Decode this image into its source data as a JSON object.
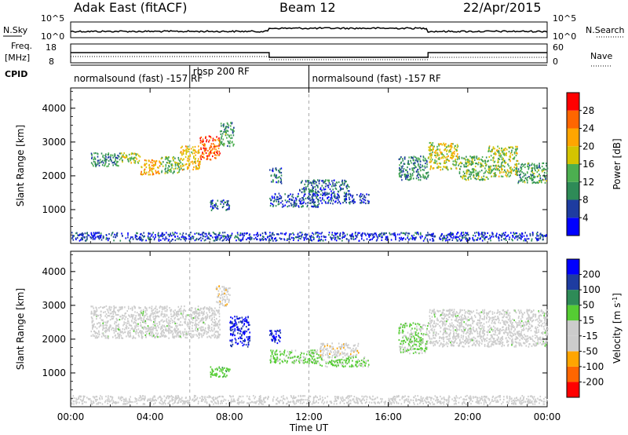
{
  "header": {
    "station": "Adak East (fitACF)",
    "beam": "Beam 12",
    "date": "22/Apr/2015"
  },
  "top_panels": {
    "nsky_label": "N.Sky",
    "nsearch_label": "N.Search",
    "nsky_ticks": [
      "10^5",
      "10^0"
    ],
    "nsearch_ticks": [
      "10^5",
      "10^0"
    ],
    "freq_label": "Freq.",
    "freq_unit": "[MHz]",
    "freq_ticks": [
      "18",
      "8"
    ],
    "nave_label": "Nave",
    "nave_ticks": [
      "60",
      "0"
    ],
    "cpid_label": "CPID",
    "cpid_segments": [
      {
        "label": "normalsound (fast) -157 RF",
        "start": 0,
        "end": 6
      },
      {
        "label": "rbsp 200 RF",
        "start": 6,
        "end": 12
      },
      {
        "label": "normalsound (fast) -157 RF",
        "start": 12,
        "end": 24
      }
    ]
  },
  "colors": {
    "power": [
      "#0000ff",
      "#1e3ca0",
      "#2e8b57",
      "#4caf50",
      "#d4c400",
      "#ffa500",
      "#ff6600",
      "#ff0000"
    ],
    "velocity": [
      "#ff0000",
      "#ff6600",
      "#ffa500",
      "#cccccc",
      "#cccccc",
      "#55cc33",
      "#2e8b57",
      "#1e3ca0",
      "#0000ff"
    ]
  },
  "chart_data": [
    {
      "type": "heatmap",
      "ylabel": "Slant Range [km]",
      "xlim": [
        0,
        24
      ],
      "ylim": [
        0,
        4600
      ],
      "yticks": [
        "1000",
        "2000",
        "3000",
        "4000"
      ],
      "xticks": [
        "00:00",
        "04:00",
        "08:00",
        "12:00",
        "16:00",
        "20:00",
        "00:00"
      ],
      "colorbar": {
        "label": "Power [dB]",
        "ticks": [
          "4",
          "8",
          "12",
          "16",
          "20",
          "24",
          "28"
        ],
        "range": [
          0,
          32
        ]
      },
      "patches": [
        {
          "t0": 1.0,
          "t1": 2.5,
          "r0": 2300,
          "r1": 2700,
          "v": 10
        },
        {
          "t0": 2.5,
          "t1": 3.5,
          "r0": 2400,
          "r1": 2700,
          "v": 16
        },
        {
          "t0": 3.5,
          "t1": 4.5,
          "r0": 2050,
          "r1": 2500,
          "v": 22
        },
        {
          "t0": 4.5,
          "t1": 5.5,
          "r0": 2100,
          "r1": 2600,
          "v": 14
        },
        {
          "t0": 5.5,
          "t1": 6.5,
          "r0": 2200,
          "r1": 2900,
          "v": 20
        },
        {
          "t0": 6.5,
          "t1": 7.5,
          "r0": 2500,
          "r1": 3200,
          "v": 26
        },
        {
          "t0": 7.5,
          "t1": 8.2,
          "r0": 2900,
          "r1": 3600,
          "v": 12
        },
        {
          "t0": 7.0,
          "t1": 8.0,
          "r0": 1000,
          "r1": 1300,
          "v": 6
        },
        {
          "t0": 10.0,
          "t1": 10.6,
          "r0": 1800,
          "r1": 2250,
          "v": 8
        },
        {
          "t0": 10.0,
          "t1": 12.5,
          "r0": 1100,
          "r1": 1500,
          "v": 6
        },
        {
          "t0": 11.5,
          "t1": 14.0,
          "r0": 1500,
          "r1": 1900,
          "v": 8
        },
        {
          "t0": 12.5,
          "t1": 15.0,
          "r0": 1200,
          "r1": 1500,
          "v": 5
        },
        {
          "t0": 16.5,
          "t1": 18.0,
          "r0": 1900,
          "r1": 2600,
          "v": 10
        },
        {
          "t0": 18.0,
          "t1": 19.5,
          "r0": 2200,
          "r1": 3000,
          "v": 18
        },
        {
          "t0": 19.5,
          "t1": 21.0,
          "r0": 1900,
          "r1": 2600,
          "v": 14
        },
        {
          "t0": 21.0,
          "t1": 22.5,
          "r0": 2000,
          "r1": 2900,
          "v": 16
        },
        {
          "t0": 22.5,
          "t1": 24.0,
          "r0": 1800,
          "r1": 2400,
          "v": 12
        },
        {
          "t0": 0.0,
          "t1": 24.0,
          "r0": 100,
          "r1": 350,
          "v": 5
        }
      ]
    },
    {
      "type": "heatmap",
      "ylabel": "Slant Range [km]",
      "xlabel": "Time UT",
      "xlim": [
        0,
        24
      ],
      "ylim": [
        0,
        4600
      ],
      "yticks": [
        "1000",
        "2000",
        "3000",
        "4000"
      ],
      "xticks": [
        "00:00",
        "04:00",
        "08:00",
        "12:00",
        "16:00",
        "20:00",
        "00:00"
      ],
      "colorbar": {
        "label": "Velocity [m s",
        "label_sup": "-1",
        "label_end": "]",
        "ticks": [
          "200",
          "100",
          "50",
          "15",
          "-15",
          "-50",
          "-100",
          "-200"
        ],
        "range": [
          -250,
          250
        ]
      },
      "patches": [
        {
          "t0": 1.0,
          "t1": 7.5,
          "r0": 2050,
          "r1": 3000,
          "v": 0
        },
        {
          "t0": 7.3,
          "t1": 8.0,
          "r0": 3000,
          "r1": 3600,
          "v": -60
        },
        {
          "t0": 8.0,
          "t1": 9.0,
          "r0": 1800,
          "r1": 2700,
          "v": 200
        },
        {
          "t0": 7.0,
          "t1": 8.0,
          "r0": 900,
          "r1": 1200,
          "v": 60
        },
        {
          "t0": 10.0,
          "t1": 10.6,
          "r0": 1900,
          "r1": 2300,
          "v": 200
        },
        {
          "t0": 10.0,
          "t1": 12.5,
          "r0": 1300,
          "r1": 1700,
          "v": 40
        },
        {
          "t0": 12.5,
          "t1": 14.5,
          "r0": 1500,
          "r1": 1900,
          "v": -60
        },
        {
          "t0": 12.5,
          "t1": 15.0,
          "r0": 1200,
          "r1": 1500,
          "v": 40
        },
        {
          "t0": 16.5,
          "t1": 18.0,
          "r0": 1600,
          "r1": 2500,
          "v": 30
        },
        {
          "t0": 18.0,
          "t1": 24.0,
          "r0": 1800,
          "r1": 2900,
          "v": 0
        },
        {
          "t0": 0.0,
          "t1": 24.0,
          "r0": 100,
          "r1": 350,
          "v": -40
        }
      ]
    }
  ]
}
